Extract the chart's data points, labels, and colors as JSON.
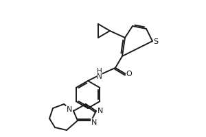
{
  "bg_color": "#ffffff",
  "line_color": "#1a1a1a",
  "line_width": 1.4,
  "fig_width": 3.0,
  "fig_height": 2.0,
  "dpi": 100,
  "S_label": "S",
  "O_label": "O",
  "N_label": "N",
  "HN_label": "H\nN",
  "N2_label": "N"
}
